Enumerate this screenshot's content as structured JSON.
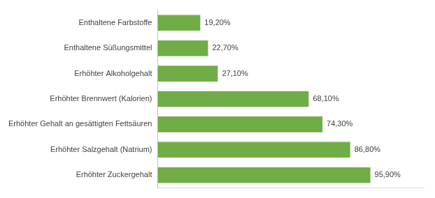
{
  "chart_data": {
    "type": "bar",
    "orientation": "horizontal",
    "categories": [
      "Enthaltene Farbstoffe",
      "Enthaltene Süßungsmittel",
      "Erhöhter Alkoholgehalt",
      "Erhöhter Brennwert (Kalorien)",
      "Erhöhter Gehalt an gesättigten Fettsäuren",
      "Erhöhter Salzgehalt (Natrium)",
      "Erhöhter Zuckergehalt"
    ],
    "values": [
      19.2,
      22.7,
      27.1,
      68.1,
      74.3,
      86.8,
      95.9
    ],
    "value_labels": [
      "19,20%",
      "22,70%",
      "27,10%",
      "68,10%",
      "74,30%",
      "86,80%",
      "95,90%"
    ],
    "color": "#70ad47",
    "xlim": [
      0,
      120
    ],
    "grid": false,
    "data_labels": true,
    "tick_labels": "y"
  }
}
